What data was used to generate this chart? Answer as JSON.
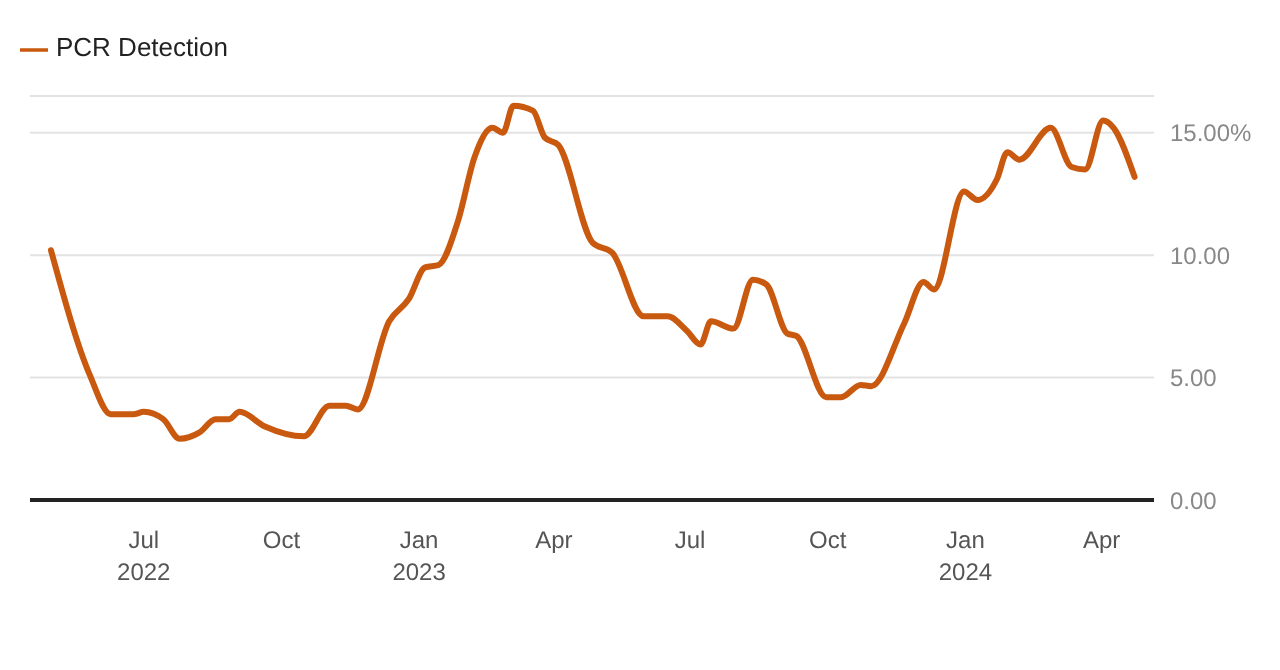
{
  "chart_data": {
    "type": "line",
    "legend": "top left",
    "grid": "y",
    "marker": "none",
    "line_style": "solid",
    "x": [
      "2022-04-30",
      "2022-05-26",
      "2022-06-09",
      "2022-06-24",
      "2022-07-01",
      "2022-07-14",
      "2022-07-25",
      "2022-08-07",
      "2022-08-18",
      "2022-08-27",
      "2022-09-03",
      "2022-09-20",
      "2022-10-16",
      "2022-11-02",
      "2022-11-13",
      "2022-11-21",
      "2022-12-12",
      "2022-12-25",
      "2023-01-05",
      "2023-01-14",
      "2023-01-27",
      "2023-02-07",
      "2023-02-19",
      "2023-02-26",
      "2023-03-05",
      "2023-03-18",
      "2023-03-26",
      "2023-04-04",
      "2023-04-27",
      "2023-05-10",
      "2023-05-31",
      "2023-06-16",
      "2023-06-29",
      "2023-07-08",
      "2023-07-15",
      "2023-07-30",
      "2023-08-12",
      "2023-08-21",
      "2023-09-04",
      "2023-09-10",
      "2023-09-30",
      "2023-10-10",
      "2023-10-23",
      "2023-10-30",
      "2023-11-21",
      "2023-12-04",
      "2023-12-11",
      "2023-12-31",
      "2024-01-09",
      "2024-01-22",
      "2024-01-29",
      "2024-02-06",
      "2024-02-27",
      "2024-03-12",
      "2024-03-21",
      "2024-04-02",
      "2024-04-09",
      "2024-04-23"
    ],
    "series": [
      {
        "name": "PCR Detection",
        "color": "#c8590f",
        "values": [
          10.2,
          5.1,
          3.5,
          3.5,
          3.6,
          3.3,
          2.5,
          2.75,
          3.3,
          3.3,
          3.6,
          3.0,
          2.6,
          3.85,
          3.85,
          3.7,
          7.3,
          8.2,
          9.5,
          9.6,
          11.4,
          14.0,
          15.2,
          15.0,
          16.1,
          15.9,
          14.8,
          14.5,
          10.5,
          10.1,
          7.5,
          7.5,
          6.9,
          6.35,
          7.3,
          7.0,
          9.0,
          8.8,
          6.8,
          6.7,
          4.2,
          4.2,
          4.7,
          4.65,
          7.2,
          8.9,
          8.6,
          12.6,
          12.25,
          13.1,
          14.2,
          13.9,
          15.2,
          13.6,
          13.5,
          15.5,
          15.2,
          13.2
        ]
      }
    ],
    "xlim": [
      "2022-04-16",
      "2024-05-06"
    ],
    "xticks": [
      {
        "value": "2022-07-01",
        "label": "Jul\n2022"
      },
      {
        "value": "2022-10-01",
        "label": "Oct"
      },
      {
        "value": "2023-01-01",
        "label": "Jan\n2023"
      },
      {
        "value": "2023-04-01",
        "label": "Apr"
      },
      {
        "value": "2023-07-01",
        "label": "Jul"
      },
      {
        "value": "2023-10-01",
        "label": "Oct"
      },
      {
        "value": "2024-01-01",
        "label": "Jan\n2024"
      },
      {
        "value": "2024-04-01",
        "label": "Apr"
      }
    ],
    "ylim": [
      0,
      16.5
    ],
    "yticks": [
      {
        "value": 0,
        "label": "0.00"
      },
      {
        "value": 5,
        "label": "5.00"
      },
      {
        "value": 10,
        "label": "10.00"
      },
      {
        "value": 15,
        "label": "15.00%"
      }
    ]
  }
}
